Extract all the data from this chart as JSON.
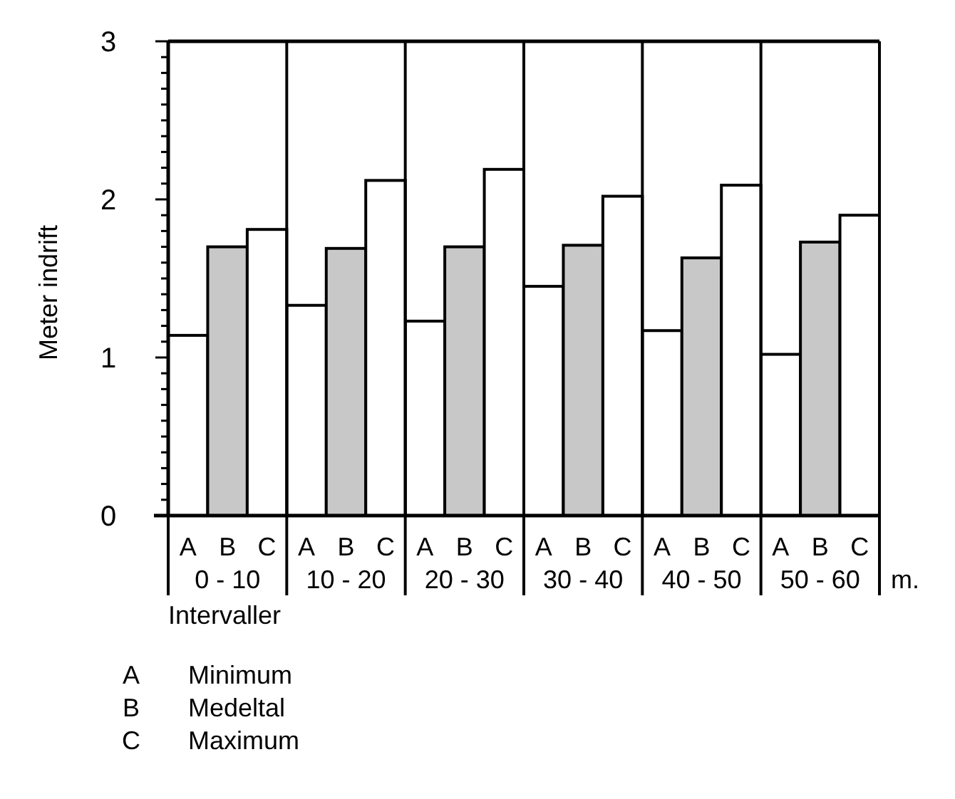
{
  "chart_data": {
    "type": "bar",
    "ylabel": "Meter indrift",
    "xlabel": "Intervaller",
    "categories": [
      "0 - 10",
      "10 - 20",
      "20 - 30",
      "30 - 40",
      "40 - 50",
      "50 - 60"
    ],
    "series": [
      {
        "name": "A",
        "color": "#ffffff",
        "values": [
          1.14,
          1.33,
          1.23,
          1.45,
          1.17,
          1.02
        ]
      },
      {
        "name": "B",
        "color": "#c8c8c8",
        "values": [
          1.7,
          1.69,
          1.7,
          1.71,
          1.63,
          1.73
        ]
      },
      {
        "name": "C",
        "color": "#ffffff",
        "values": [
          1.81,
          2.12,
          2.19,
          2.02,
          2.09,
          1.9
        ]
      }
    ],
    "ylim": [
      0,
      3
    ],
    "yticks": [
      0,
      {
        "value": 0.1,
        "label": null
      },
      {
        "value": 0.2,
        "label": null
      },
      {
        "value": 0.3,
        "label": null
      },
      {
        "value": 0.4,
        "label": null
      },
      {
        "value": 0.5,
        "label": null
      },
      {
        "value": 0.6,
        "label": null
      },
      {
        "value": 0.7,
        "label": null
      },
      {
        "value": 0.8,
        "label": null
      },
      {
        "value": 0.9,
        "label": null
      },
      1,
      {
        "value": 1.1,
        "label": null
      },
      {
        "value": 1.2,
        "label": null
      },
      {
        "value": 1.3,
        "label": null
      },
      {
        "value": 1.4,
        "label": null
      },
      {
        "value": 1.5,
        "label": null
      },
      {
        "value": 1.6,
        "label": null
      },
      {
        "value": 1.7,
        "label": null
      },
      {
        "value": 1.8,
        "label": null
      },
      {
        "value": 1.9,
        "label": null
      },
      2,
      {
        "value": 2.1,
        "label": null
      },
      {
        "value": 2.2,
        "label": null
      },
      {
        "value": 2.3,
        "label": null
      },
      {
        "value": 2.4,
        "label": null
      },
      {
        "value": 2.5,
        "label": null
      },
      {
        "value": 2.6,
        "label": null
      },
      {
        "value": 2.7,
        "label": null
      },
      {
        "value": 2.8,
        "label": null
      },
      {
        "value": 2.9,
        "label": null
      },
      3
    ],
    "legend": "bottom",
    "annotations": [
      "m.",
      "Minimum",
      "Medeltal",
      "Maximum"
    ]
  }
}
